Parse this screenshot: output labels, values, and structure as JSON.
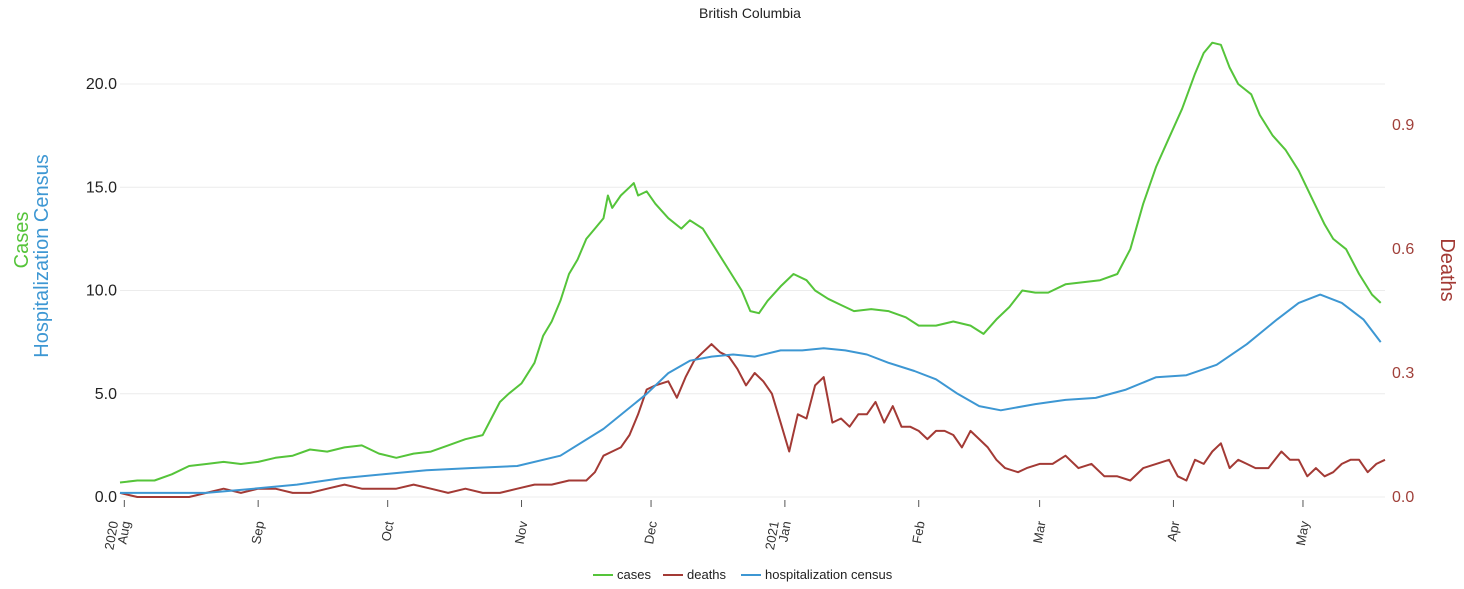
{
  "chart_data": {
    "type": "line",
    "title": "British Columbia",
    "x_ticks": [
      "Aug",
      "Sep",
      "Oct",
      "Nov",
      "Dec",
      "Jan",
      "Feb",
      "Mar",
      "Apr",
      "May"
    ],
    "x_year_ticks": [
      "2020",
      "2021"
    ],
    "y_left_label_1": "Cases",
    "y_left_label_2": "Hospitalization Census",
    "y_right_label": "Deaths",
    "y_left_ticks": [
      "0.0",
      "5.0",
      "10.0",
      "15.0",
      "20.0"
    ],
    "y_right_ticks": [
      "0.0",
      "0.3",
      "0.6",
      "0.9"
    ],
    "y_left_range": [
      0,
      22
    ],
    "y_right_range": [
      0,
      1.1
    ],
    "x_range": [
      "2020-07-31",
      "2021-05-20"
    ],
    "grid": true,
    "legend_position": "bottom",
    "series": [
      {
        "name": "cases",
        "axis": "left",
        "color": "#55c43a",
        "points": [
          [
            "2020-07-31",
            0.7
          ],
          [
            "2020-08-04",
            0.8
          ],
          [
            "2020-08-08",
            0.8
          ],
          [
            "2020-08-12",
            1.1
          ],
          [
            "2020-08-16",
            1.5
          ],
          [
            "2020-08-20",
            1.6
          ],
          [
            "2020-08-24",
            1.7
          ],
          [
            "2020-08-28",
            1.6
          ],
          [
            "2020-09-01",
            1.7
          ],
          [
            "2020-09-05",
            1.9
          ],
          [
            "2020-09-09",
            2.0
          ],
          [
            "2020-09-13",
            2.3
          ],
          [
            "2020-09-17",
            2.2
          ],
          [
            "2020-09-21",
            2.4
          ],
          [
            "2020-09-25",
            2.5
          ],
          [
            "2020-09-29",
            2.1
          ],
          [
            "2020-10-03",
            1.9
          ],
          [
            "2020-10-07",
            2.1
          ],
          [
            "2020-10-11",
            2.2
          ],
          [
            "2020-10-15",
            2.5
          ],
          [
            "2020-10-19",
            2.8
          ],
          [
            "2020-10-23",
            3.0
          ],
          [
            "2020-10-25",
            3.8
          ],
          [
            "2020-10-27",
            4.6
          ],
          [
            "2020-10-29",
            5.0
          ],
          [
            "2020-11-01",
            5.5
          ],
          [
            "2020-11-04",
            6.5
          ],
          [
            "2020-11-06",
            7.8
          ],
          [
            "2020-11-08",
            8.5
          ],
          [
            "2020-11-10",
            9.5
          ],
          [
            "2020-11-12",
            10.8
          ],
          [
            "2020-11-14",
            11.5
          ],
          [
            "2020-11-16",
            12.5
          ],
          [
            "2020-11-18",
            13.0
          ],
          [
            "2020-11-20",
            13.5
          ],
          [
            "2020-11-21",
            14.6
          ],
          [
            "2020-11-22",
            14.0
          ],
          [
            "2020-11-24",
            14.6
          ],
          [
            "2020-11-26",
            15.0
          ],
          [
            "2020-11-27",
            15.2
          ],
          [
            "2020-11-28",
            14.6
          ],
          [
            "2020-11-30",
            14.8
          ],
          [
            "2020-12-02",
            14.2
          ],
          [
            "2020-12-05",
            13.5
          ],
          [
            "2020-12-08",
            13.0
          ],
          [
            "2020-12-10",
            13.4
          ],
          [
            "2020-12-13",
            13.0
          ],
          [
            "2020-12-16",
            12.0
          ],
          [
            "2020-12-19",
            11.0
          ],
          [
            "2020-12-22",
            10.0
          ],
          [
            "2020-12-24",
            9.0
          ],
          [
            "2020-12-26",
            8.9
          ],
          [
            "2020-12-28",
            9.5
          ],
          [
            "2020-12-31",
            10.2
          ],
          [
            "2021-01-03",
            10.8
          ],
          [
            "2021-01-06",
            10.5
          ],
          [
            "2021-01-08",
            10.0
          ],
          [
            "2021-01-11",
            9.6
          ],
          [
            "2021-01-14",
            9.3
          ],
          [
            "2021-01-17",
            9.0
          ],
          [
            "2021-01-21",
            9.1
          ],
          [
            "2021-01-25",
            9.0
          ],
          [
            "2021-01-29",
            8.7
          ],
          [
            "2021-02-01",
            8.3
          ],
          [
            "2021-02-05",
            8.3
          ],
          [
            "2021-02-09",
            8.5
          ],
          [
            "2021-02-13",
            8.3
          ],
          [
            "2021-02-16",
            7.9
          ],
          [
            "2021-02-19",
            8.6
          ],
          [
            "2021-02-22",
            9.2
          ],
          [
            "2021-02-25",
            10.0
          ],
          [
            "2021-02-28",
            9.9
          ],
          [
            "2021-03-03",
            9.9
          ],
          [
            "2021-03-07",
            10.3
          ],
          [
            "2021-03-11",
            10.4
          ],
          [
            "2021-03-15",
            10.5
          ],
          [
            "2021-03-19",
            10.8
          ],
          [
            "2021-03-22",
            12.0
          ],
          [
            "2021-03-25",
            14.2
          ],
          [
            "2021-03-28",
            16.0
          ],
          [
            "2021-03-31",
            17.4
          ],
          [
            "2021-04-03",
            18.8
          ],
          [
            "2021-04-06",
            20.5
          ],
          [
            "2021-04-08",
            21.5
          ],
          [
            "2021-04-10",
            22.0
          ],
          [
            "2021-04-12",
            21.9
          ],
          [
            "2021-04-14",
            20.8
          ],
          [
            "2021-04-16",
            20.0
          ],
          [
            "2021-04-19",
            19.5
          ],
          [
            "2021-04-21",
            18.5
          ],
          [
            "2021-04-24",
            17.5
          ],
          [
            "2021-04-27",
            16.8
          ],
          [
            "2021-04-30",
            15.8
          ],
          [
            "2021-05-03",
            14.5
          ],
          [
            "2021-05-06",
            13.2
          ],
          [
            "2021-05-08",
            12.5
          ],
          [
            "2021-05-11",
            12.0
          ],
          [
            "2021-05-14",
            10.8
          ],
          [
            "2021-05-17",
            9.8
          ],
          [
            "2021-05-19",
            9.4
          ]
        ]
      },
      {
        "name": "deaths",
        "axis": "right",
        "color": "#a33a35",
        "points": [
          [
            "2020-07-31",
            0.01
          ],
          [
            "2020-08-04",
            0.0
          ],
          [
            "2020-08-10",
            0.0
          ],
          [
            "2020-08-16",
            0.0
          ],
          [
            "2020-08-20",
            0.01
          ],
          [
            "2020-08-24",
            0.02
          ],
          [
            "2020-08-28",
            0.01
          ],
          [
            "2020-09-01",
            0.02
          ],
          [
            "2020-09-05",
            0.02
          ],
          [
            "2020-09-09",
            0.01
          ],
          [
            "2020-09-13",
            0.01
          ],
          [
            "2020-09-17",
            0.02
          ],
          [
            "2020-09-21",
            0.03
          ],
          [
            "2020-09-25",
            0.02
          ],
          [
            "2020-09-29",
            0.02
          ],
          [
            "2020-10-03",
            0.02
          ],
          [
            "2020-10-07",
            0.03
          ],
          [
            "2020-10-11",
            0.02
          ],
          [
            "2020-10-15",
            0.01
          ],
          [
            "2020-10-19",
            0.02
          ],
          [
            "2020-10-23",
            0.01
          ],
          [
            "2020-10-27",
            0.01
          ],
          [
            "2020-10-31",
            0.02
          ],
          [
            "2020-11-04",
            0.03
          ],
          [
            "2020-11-08",
            0.03
          ],
          [
            "2020-11-12",
            0.04
          ],
          [
            "2020-11-16",
            0.04
          ],
          [
            "2020-11-18",
            0.06
          ],
          [
            "2020-11-20",
            0.1
          ],
          [
            "2020-11-22",
            0.11
          ],
          [
            "2020-11-24",
            0.12
          ],
          [
            "2020-11-26",
            0.15
          ],
          [
            "2020-11-28",
            0.2
          ],
          [
            "2020-11-30",
            0.26
          ],
          [
            "2020-12-02",
            0.27
          ],
          [
            "2020-12-05",
            0.28
          ],
          [
            "2020-12-07",
            0.24
          ],
          [
            "2020-12-09",
            0.29
          ],
          [
            "2020-12-11",
            0.33
          ],
          [
            "2020-12-13",
            0.35
          ],
          [
            "2020-12-15",
            0.37
          ],
          [
            "2020-12-17",
            0.35
          ],
          [
            "2020-12-19",
            0.34
          ],
          [
            "2020-12-21",
            0.31
          ],
          [
            "2020-12-23",
            0.27
          ],
          [
            "2020-12-25",
            0.3
          ],
          [
            "2020-12-27",
            0.28
          ],
          [
            "2020-12-29",
            0.25
          ],
          [
            "2020-12-31",
            0.18
          ],
          [
            "2021-01-02",
            0.11
          ],
          [
            "2021-01-04",
            0.2
          ],
          [
            "2021-01-06",
            0.19
          ],
          [
            "2021-01-08",
            0.27
          ],
          [
            "2021-01-10",
            0.29
          ],
          [
            "2021-01-12",
            0.18
          ],
          [
            "2021-01-14",
            0.19
          ],
          [
            "2021-01-16",
            0.17
          ],
          [
            "2021-01-18",
            0.2
          ],
          [
            "2021-01-20",
            0.2
          ],
          [
            "2021-01-22",
            0.23
          ],
          [
            "2021-01-24",
            0.18
          ],
          [
            "2021-01-26",
            0.22
          ],
          [
            "2021-01-28",
            0.17
          ],
          [
            "2021-01-30",
            0.17
          ],
          [
            "2021-02-01",
            0.16
          ],
          [
            "2021-02-03",
            0.14
          ],
          [
            "2021-02-05",
            0.16
          ],
          [
            "2021-02-07",
            0.16
          ],
          [
            "2021-02-09",
            0.15
          ],
          [
            "2021-02-11",
            0.12
          ],
          [
            "2021-02-13",
            0.16
          ],
          [
            "2021-02-15",
            0.14
          ],
          [
            "2021-02-17",
            0.12
          ],
          [
            "2021-02-19",
            0.09
          ],
          [
            "2021-02-21",
            0.07
          ],
          [
            "2021-02-24",
            0.06
          ],
          [
            "2021-02-26",
            0.07
          ],
          [
            "2021-03-01",
            0.08
          ],
          [
            "2021-03-04",
            0.08
          ],
          [
            "2021-03-07",
            0.1
          ],
          [
            "2021-03-10",
            0.07
          ],
          [
            "2021-03-13",
            0.08
          ],
          [
            "2021-03-16",
            0.05
          ],
          [
            "2021-03-19",
            0.05
          ],
          [
            "2021-03-22",
            0.04
          ],
          [
            "2021-03-25",
            0.07
          ],
          [
            "2021-03-28",
            0.08
          ],
          [
            "2021-03-31",
            0.09
          ],
          [
            "2021-04-02",
            0.05
          ],
          [
            "2021-04-04",
            0.04
          ],
          [
            "2021-04-06",
            0.09
          ],
          [
            "2021-04-08",
            0.08
          ],
          [
            "2021-04-10",
            0.11
          ],
          [
            "2021-04-12",
            0.13
          ],
          [
            "2021-04-14",
            0.07
          ],
          [
            "2021-04-16",
            0.09
          ],
          [
            "2021-04-18",
            0.08
          ],
          [
            "2021-04-20",
            0.07
          ],
          [
            "2021-04-23",
            0.07
          ],
          [
            "2021-04-26",
            0.11
          ],
          [
            "2021-04-28",
            0.09
          ],
          [
            "2021-04-30",
            0.09
          ],
          [
            "2021-05-02",
            0.05
          ],
          [
            "2021-05-04",
            0.07
          ],
          [
            "2021-05-06",
            0.05
          ],
          [
            "2021-05-08",
            0.06
          ],
          [
            "2021-05-10",
            0.08
          ],
          [
            "2021-05-12",
            0.09
          ],
          [
            "2021-05-14",
            0.09
          ],
          [
            "2021-05-16",
            0.06
          ],
          [
            "2021-05-18",
            0.08
          ],
          [
            "2021-05-20",
            0.09
          ]
        ]
      },
      {
        "name": "hospitalization census",
        "axis": "left",
        "color": "#3d97d3",
        "points": [
          [
            "2020-07-31",
            0.2
          ],
          [
            "2020-08-10",
            0.2
          ],
          [
            "2020-08-20",
            0.2
          ],
          [
            "2020-08-31",
            0.4
          ],
          [
            "2020-09-10",
            0.6
          ],
          [
            "2020-09-20",
            0.9
          ],
          [
            "2020-09-30",
            1.1
          ],
          [
            "2020-10-10",
            1.3
          ],
          [
            "2020-10-20",
            1.4
          ],
          [
            "2020-10-31",
            1.5
          ],
          [
            "2020-11-10",
            2.0
          ],
          [
            "2020-11-20",
            3.3
          ],
          [
            "2020-11-30",
            5.0
          ],
          [
            "2020-12-05",
            6.0
          ],
          [
            "2020-12-10",
            6.6
          ],
          [
            "2020-12-15",
            6.8
          ],
          [
            "2020-12-20",
            6.9
          ],
          [
            "2020-12-25",
            6.8
          ],
          [
            "2020-12-31",
            7.1
          ],
          [
            "2021-01-05",
            7.1
          ],
          [
            "2021-01-10",
            7.2
          ],
          [
            "2021-01-15",
            7.1
          ],
          [
            "2021-01-20",
            6.9
          ],
          [
            "2021-01-25",
            6.5
          ],
          [
            "2021-01-31",
            6.1
          ],
          [
            "2021-02-05",
            5.7
          ],
          [
            "2021-02-10",
            5.0
          ],
          [
            "2021-02-15",
            4.4
          ],
          [
            "2021-02-20",
            4.2
          ],
          [
            "2021-02-28",
            4.5
          ],
          [
            "2021-03-07",
            4.7
          ],
          [
            "2021-03-14",
            4.8
          ],
          [
            "2021-03-21",
            5.2
          ],
          [
            "2021-03-28",
            5.8
          ],
          [
            "2021-04-04",
            5.9
          ],
          [
            "2021-04-11",
            6.4
          ],
          [
            "2021-04-18",
            7.4
          ],
          [
            "2021-04-25",
            8.6
          ],
          [
            "2021-04-30",
            9.4
          ],
          [
            "2021-05-05",
            9.8
          ],
          [
            "2021-05-10",
            9.4
          ],
          [
            "2021-05-15",
            8.6
          ],
          [
            "2021-05-19",
            7.5
          ]
        ]
      }
    ]
  }
}
